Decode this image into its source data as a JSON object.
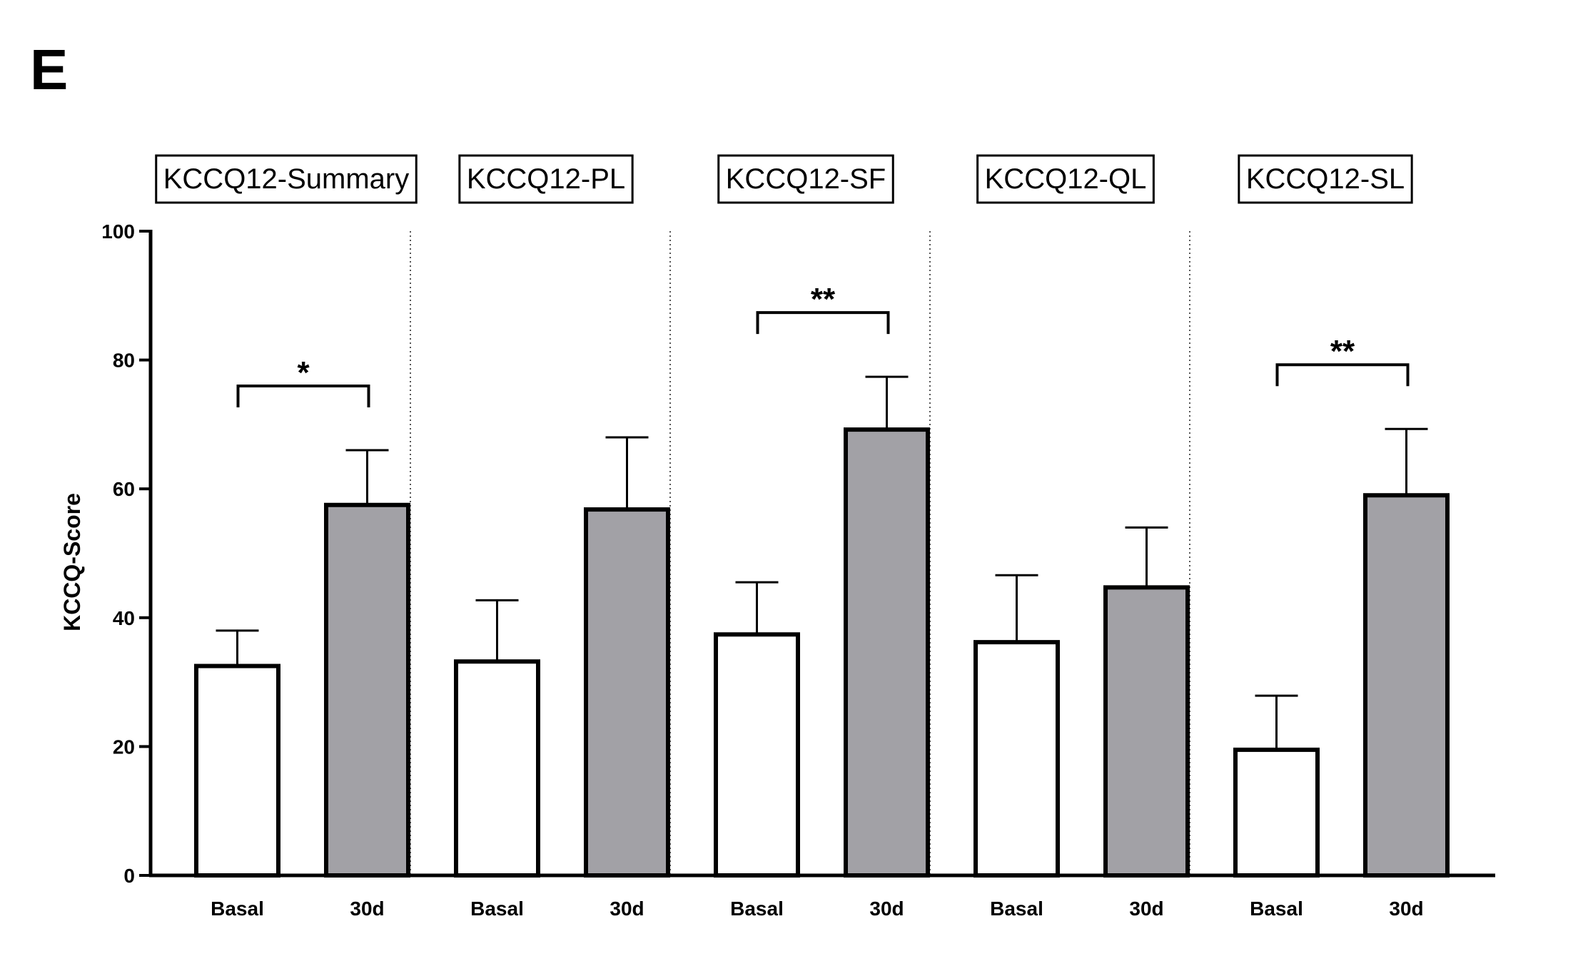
{
  "figure": {
    "panel_letter": "E"
  },
  "chart_data": {
    "type": "bar",
    "ylabel": "KCCQ-Score",
    "xlabel": "",
    "ylim": [
      0,
      100
    ],
    "yticks": [
      0,
      20,
      40,
      60,
      80,
      100
    ],
    "grid": false,
    "bar_colors": {
      "Basal": "#ffffff",
      "30d": "#a2a1a6"
    },
    "groups": [
      {
        "title": "KCCQ12-Summary",
        "categories": [
          "Basal",
          "30d"
        ],
        "values": [
          32.5,
          57.5
        ],
        "errors": [
          5.5,
          8.5
        ],
        "significance": "*"
      },
      {
        "title": "KCCQ12-PL",
        "categories": [
          "Basal",
          "30d"
        ],
        "values": [
          33.2,
          56.8
        ],
        "errors": [
          9.5,
          11.2
        ],
        "significance": ""
      },
      {
        "title": "KCCQ12-SF",
        "categories": [
          "Basal",
          "30d"
        ],
        "values": [
          37.4,
          69.2
        ],
        "errors": [
          8.1,
          8.2
        ],
        "significance": "**"
      },
      {
        "title": "KCCQ12-QL",
        "categories": [
          "Basal",
          "30d"
        ],
        "values": [
          36.2,
          44.7
        ],
        "errors": [
          10.4,
          9.3
        ],
        "significance": ""
      },
      {
        "title": "KCCQ12-SL",
        "categories": [
          "Basal",
          "30d"
        ],
        "values": [
          19.5,
          59.0
        ],
        "errors": [
          8.4,
          10.3
        ],
        "significance": "**"
      }
    ]
  }
}
